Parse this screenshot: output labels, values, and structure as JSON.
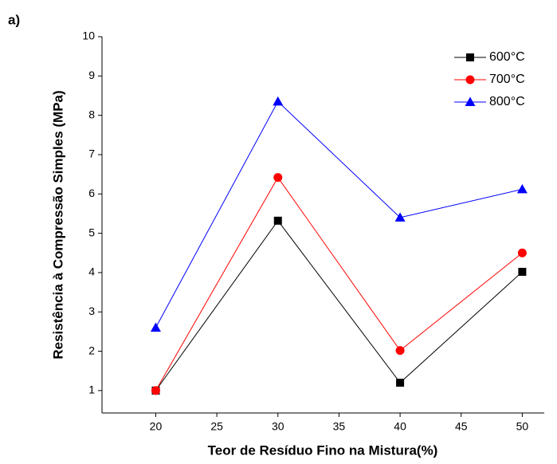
{
  "chart_data": {
    "type": "line",
    "panel_label": "a)",
    "x_label": "Teor de Resíduo Fino na Mistura(%)",
    "y_label": "Resistência à Compressão Simples (MPa)",
    "x": [
      20,
      30,
      40,
      50
    ],
    "series": [
      {
        "name": "600°C",
        "color": "#000000",
        "marker": "square",
        "values": [
          1.0,
          5.32,
          1.2,
          4.02
        ]
      },
      {
        "name": "700°C",
        "color": "#ff0000",
        "marker": "circle",
        "values": [
          1.0,
          6.42,
          2.02,
          4.5
        ]
      },
      {
        "name": "800°C",
        "color": "#0000ff",
        "marker": "triangle",
        "values": [
          2.6,
          8.35,
          5.4,
          6.12
        ]
      }
    ],
    "xlim": [
      15.6,
      51.8
    ],
    "xticks": [
      20,
      25,
      30,
      35,
      40,
      45,
      50
    ],
    "ylim": [
      0.43,
      10
    ],
    "yticks": [
      1,
      2,
      3,
      4,
      5,
      6,
      7,
      8,
      9,
      10
    ],
    "grid": false,
    "legend": "upper right"
  }
}
